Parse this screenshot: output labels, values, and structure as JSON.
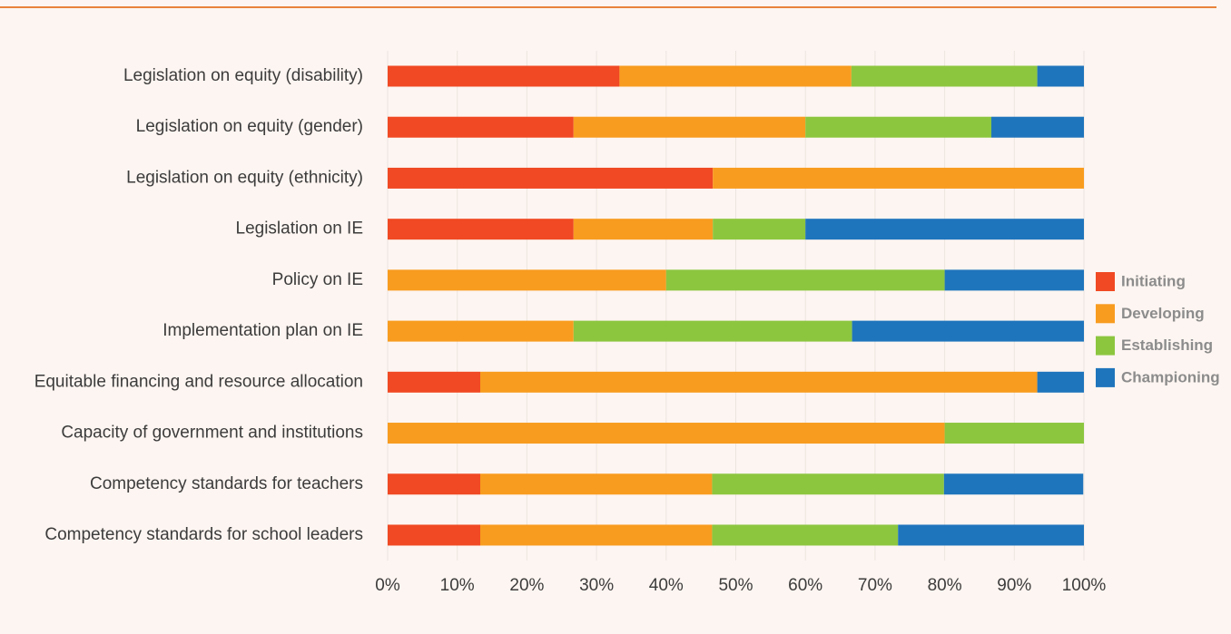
{
  "chart_data": {
    "type": "stacked_barh",
    "categories": [
      "Legislation on equity (disability)",
      "Legislation on equity (gender)",
      "Legislation on equity (ethnicity)",
      "Legislation on IE",
      "Policy on IE",
      "Implementation plan on IE",
      "Equitable financing and resource allocation",
      "Capacity of government and institutions",
      "Competency standards for teachers",
      "Competency standards for school leaders"
    ],
    "series": [
      {
        "name": "Initiating",
        "color": "#f04923",
        "values": [
          33.3,
          26.7,
          46.7,
          26.7,
          0,
          0,
          13.3,
          0,
          13.3,
          13.3
        ]
      },
      {
        "name": "Developing",
        "color": "#f89c1f",
        "values": [
          33.3,
          33.3,
          53.3,
          20,
          40,
          26.7,
          80,
          80,
          33.3,
          33.3
        ]
      },
      {
        "name": "Establishing",
        "color": "#8cc63f",
        "values": [
          26.7,
          26.7,
          0,
          13.3,
          40,
          40,
          0,
          20,
          33.3,
          26.7
        ]
      },
      {
        "name": "Championing",
        "color": "#1f75bc",
        "values": [
          6.7,
          13.3,
          0,
          40,
          20,
          33.3,
          6.7,
          0,
          20,
          26.7
        ]
      }
    ],
    "xlim": [
      0,
      100
    ],
    "xticks": [
      {
        "value": 0,
        "label": "0%"
      },
      {
        "value": 10,
        "label": "10%"
      },
      {
        "value": 20,
        "label": "20%"
      },
      {
        "value": 30,
        "label": "30%"
      },
      {
        "value": 40,
        "label": "40%"
      },
      {
        "value": 50,
        "label": "50%"
      },
      {
        "value": 60,
        "label": "60%"
      },
      {
        "value": 70,
        "label": "70%"
      },
      {
        "value": 80,
        "label": "80%"
      },
      {
        "value": 90,
        "label": "90%"
      },
      {
        "value": 100,
        "label": "100%"
      }
    ],
    "grid": true,
    "legend": "right"
  }
}
